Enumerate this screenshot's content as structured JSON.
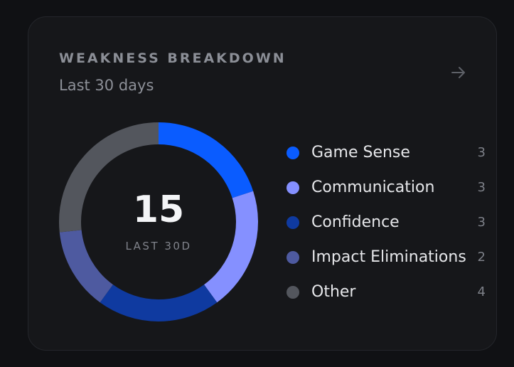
{
  "card": {
    "title": "WEAKNESS BREAKDOWN",
    "subtitle": "Last 30 days",
    "arrow_icon": "arrow-right-icon"
  },
  "donut": {
    "total": "15",
    "total_label": "LAST 30D"
  },
  "chart_data": {
    "type": "pie",
    "categories": [
      "Game Sense",
      "Communication",
      "Confidence",
      "Impact Eliminations",
      "Other"
    ],
    "values": [
      3,
      3,
      3,
      2,
      4
    ],
    "colors": [
      "#0a5cff",
      "#8590ff",
      "#0f3aa0",
      "#4e5aa0",
      "#53565d"
    ]
  },
  "legend": [
    {
      "label": "Game Sense",
      "count": "3",
      "color": "#0a5cff"
    },
    {
      "label": "Communication",
      "count": "3",
      "color": "#8590ff"
    },
    {
      "label": "Confidence",
      "count": "3",
      "color": "#0f3aa0"
    },
    {
      "label": "Impact Eliminations",
      "count": "2",
      "color": "#4e5aa0"
    },
    {
      "label": "Other",
      "count": "4",
      "color": "#53565d"
    }
  ]
}
